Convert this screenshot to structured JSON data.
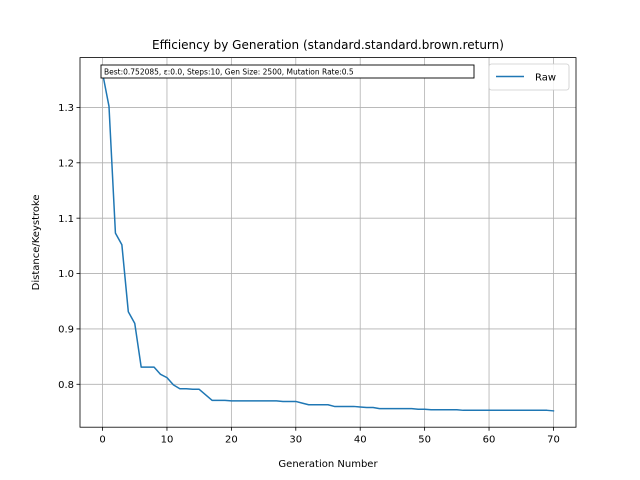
{
  "chart_data": {
    "type": "line",
    "title": "Efficiency by Generation (standard.standard.brown.return)",
    "xlabel": "Generation Number",
    "ylabel": "Distance/Keystroke",
    "xlim": [
      -3.5,
      73.5
    ],
    "ylim": [
      0.7225,
      1.39
    ],
    "xticks": [
      0,
      10,
      20,
      30,
      40,
      50,
      60,
      70
    ],
    "yticks": [
      0.8,
      0.9,
      1.0,
      1.1,
      1.2,
      1.3
    ],
    "ytick_labels": [
      "0.8",
      "0.9",
      "1.0",
      "1.1",
      "1.2",
      "1.3"
    ],
    "grid": true,
    "legend_position": "top-right",
    "annotation": "Best:0.752085, ε:0.0, Steps:10, Gen Size: 2500, Mutation Rate:0.5",
    "series": [
      {
        "name": "Raw",
        "color": "#1f77b4",
        "x": [
          0,
          1,
          2,
          3,
          4,
          5,
          6,
          7,
          8,
          9,
          10,
          11,
          12,
          13,
          14,
          15,
          16,
          17,
          18,
          19,
          20,
          21,
          22,
          23,
          24,
          25,
          26,
          27,
          28,
          29,
          30,
          31,
          32,
          33,
          34,
          35,
          36,
          37,
          38,
          39,
          40,
          41,
          42,
          43,
          44,
          45,
          46,
          47,
          48,
          49,
          50,
          51,
          52,
          53,
          54,
          55,
          56,
          57,
          58,
          59,
          60,
          61,
          62,
          63,
          64,
          65,
          66,
          67,
          68,
          69,
          70
        ],
        "y": [
          1.362,
          1.302,
          1.073,
          1.052,
          0.931,
          0.91,
          0.831,
          0.831,
          0.831,
          0.818,
          0.812,
          0.799,
          0.792,
          0.792,
          0.791,
          0.791,
          0.781,
          0.771,
          0.771,
          0.771,
          0.77,
          0.77,
          0.77,
          0.77,
          0.77,
          0.77,
          0.77,
          0.77,
          0.769,
          0.769,
          0.769,
          0.766,
          0.763,
          0.763,
          0.763,
          0.763,
          0.76,
          0.76,
          0.76,
          0.76,
          0.759,
          0.758,
          0.758,
          0.756,
          0.756,
          0.756,
          0.756,
          0.756,
          0.756,
          0.755,
          0.755,
          0.754,
          0.754,
          0.754,
          0.754,
          0.754,
          0.753,
          0.753,
          0.753,
          0.753,
          0.753,
          0.753,
          0.753,
          0.753,
          0.753,
          0.753,
          0.753,
          0.753,
          0.753,
          0.753,
          0.752
        ]
      }
    ]
  }
}
